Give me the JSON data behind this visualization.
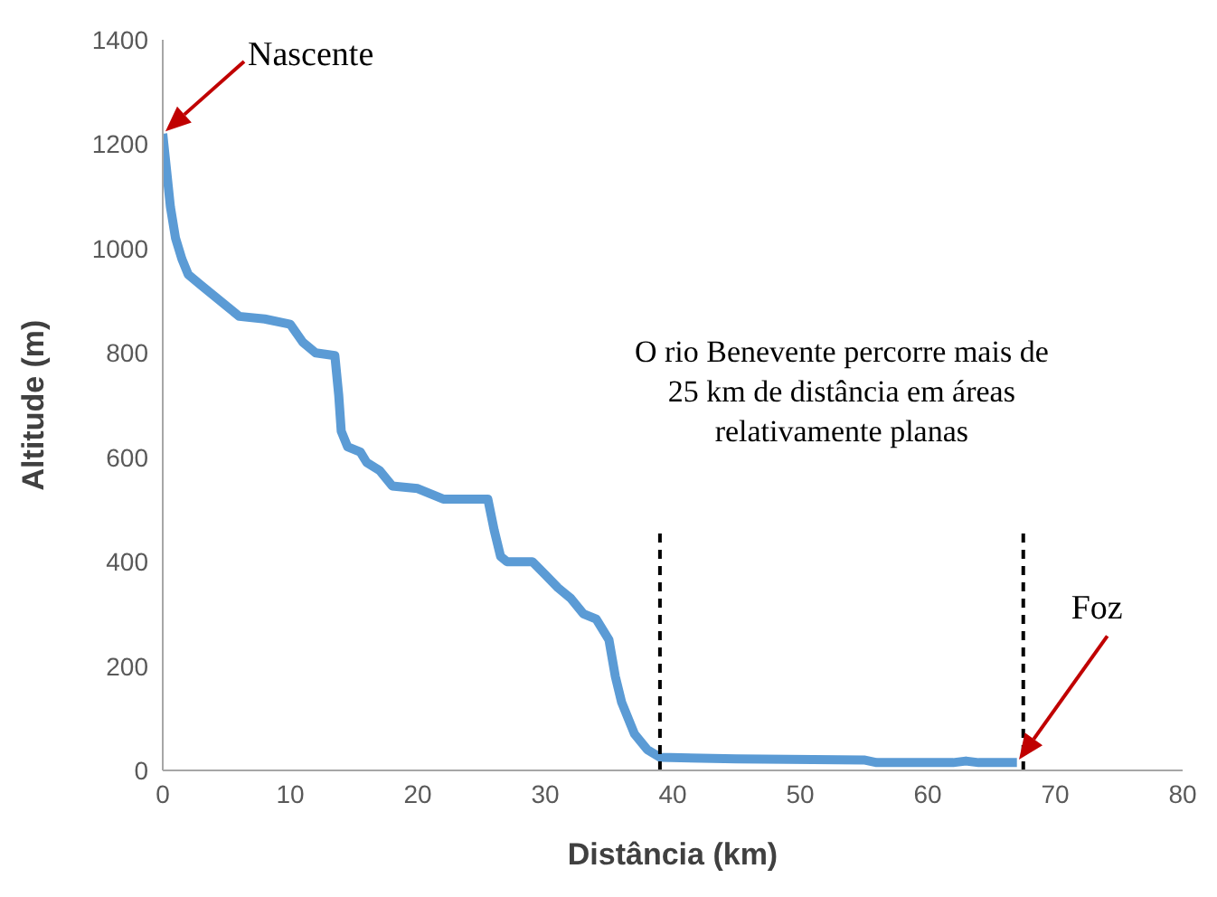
{
  "chart_data": {
    "type": "line",
    "xlabel": "Distância (km)",
    "ylabel": "Altitude (m)",
    "x": [
      0,
      0.3,
      0.6,
      1,
      1.5,
      2,
      3,
      4,
      5,
      6,
      8,
      10,
      11,
      12,
      13.5,
      13.8,
      14,
      14.5,
      15.5,
      16,
      17,
      18,
      20,
      21,
      22,
      25.5,
      26,
      26.5,
      27,
      29,
      30,
      31,
      32,
      33,
      34,
      35,
      35.5,
      36,
      37,
      38,
      39,
      45,
      55,
      56,
      62,
      63,
      64,
      67
    ],
    "series": [
      {
        "color": "#5b9bd5",
        "values": [
          1220,
          1150,
          1080,
          1020,
          980,
          950,
          930,
          910,
          890,
          870,
          865,
          855,
          820,
          800,
          795,
          720,
          650,
          620,
          610,
          590,
          575,
          545,
          540,
          530,
          520,
          520,
          460,
          410,
          400,
          400,
          375,
          350,
          330,
          300,
          290,
          250,
          180,
          130,
          70,
          40,
          25,
          22,
          20,
          15,
          15,
          18,
          15,
          15
        ]
      }
    ],
    "xlim": [
      0,
      80
    ],
    "xticks": [
      0,
      10,
      20,
      30,
      40,
      50,
      60,
      70,
      80
    ],
    "ylim": [
      0,
      1400
    ],
    "yticks": [
      0,
      200,
      400,
      600,
      800,
      1000,
      1200,
      1400
    ],
    "marker": "none",
    "line_style": "solid",
    "ref_lines": [
      {
        "axis": "x",
        "value": 39,
        "color": "#000000",
        "line_style": "dashed"
      },
      {
        "axis": "x",
        "value": 67.5,
        "color": "#000000",
        "line_style": "dashed"
      }
    ],
    "annotations": [
      "Nascente",
      {
        "text": "O rio Benevente percorre mais de 25 km de distância em áreas relativamente planas"
      },
      "Foz"
    ]
  }
}
